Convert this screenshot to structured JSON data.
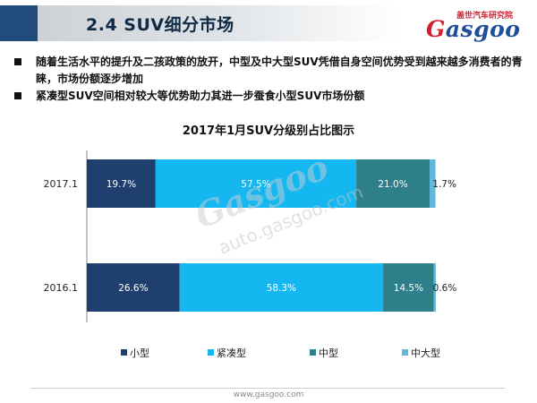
{
  "header": {
    "title": "2.4   SUV细分市场",
    "logo_tagline": "盖世汽车研究院",
    "logo_brand": "Gasgoo"
  },
  "bullets": [
    "随着生活水平的提升及二孩政策的放开，中型及中大型SUV凭借自身空间优势受到越来越多消费者的青睐，市场份额逐步增加",
    "紧凑型SUV空间相对较大等优势助力其进一步蚕食小型SUV市场份额"
  ],
  "watermark": {
    "brand": "Gasgoo",
    "url": "auto.gasgoo.com"
  },
  "footer": {
    "url": "www.gasgoo.com"
  },
  "colors": {
    "small": "#1f3f6e",
    "compact": "#15b7f0",
    "mid": "#2d7f8a",
    "midlarge": "#62b8dc",
    "header_accent": "#214b7a",
    "logo_red": "#d11f2f",
    "logo_blue": "#1e4d99"
  },
  "chart_data": {
    "type": "bar",
    "orientation": "horizontal",
    "stacked": true,
    "percent_stacked": true,
    "title": "2017年1月SUV分级别占比图示",
    "categories": [
      "2017.1",
      "2016.1"
    ],
    "series": [
      {
        "name": "小型",
        "values": [
          19.7,
          26.6
        ],
        "labels": [
          "19.7%",
          "26.6%"
        ]
      },
      {
        "name": "紧凑型",
        "values": [
          57.5,
          58.3
        ],
        "labels": [
          "57.5%",
          "58.3%"
        ]
      },
      {
        "name": "中型",
        "values": [
          21.0,
          14.5
        ],
        "labels": [
          "21.0%",
          "14.5%"
        ]
      },
      {
        "name": "中大型",
        "values": [
          1.7,
          0.6
        ],
        "labels": [
          "1.7%",
          "0.6%"
        ]
      }
    ],
    "xlim": [
      0,
      100
    ],
    "legend": "bottom",
    "grid": false
  }
}
